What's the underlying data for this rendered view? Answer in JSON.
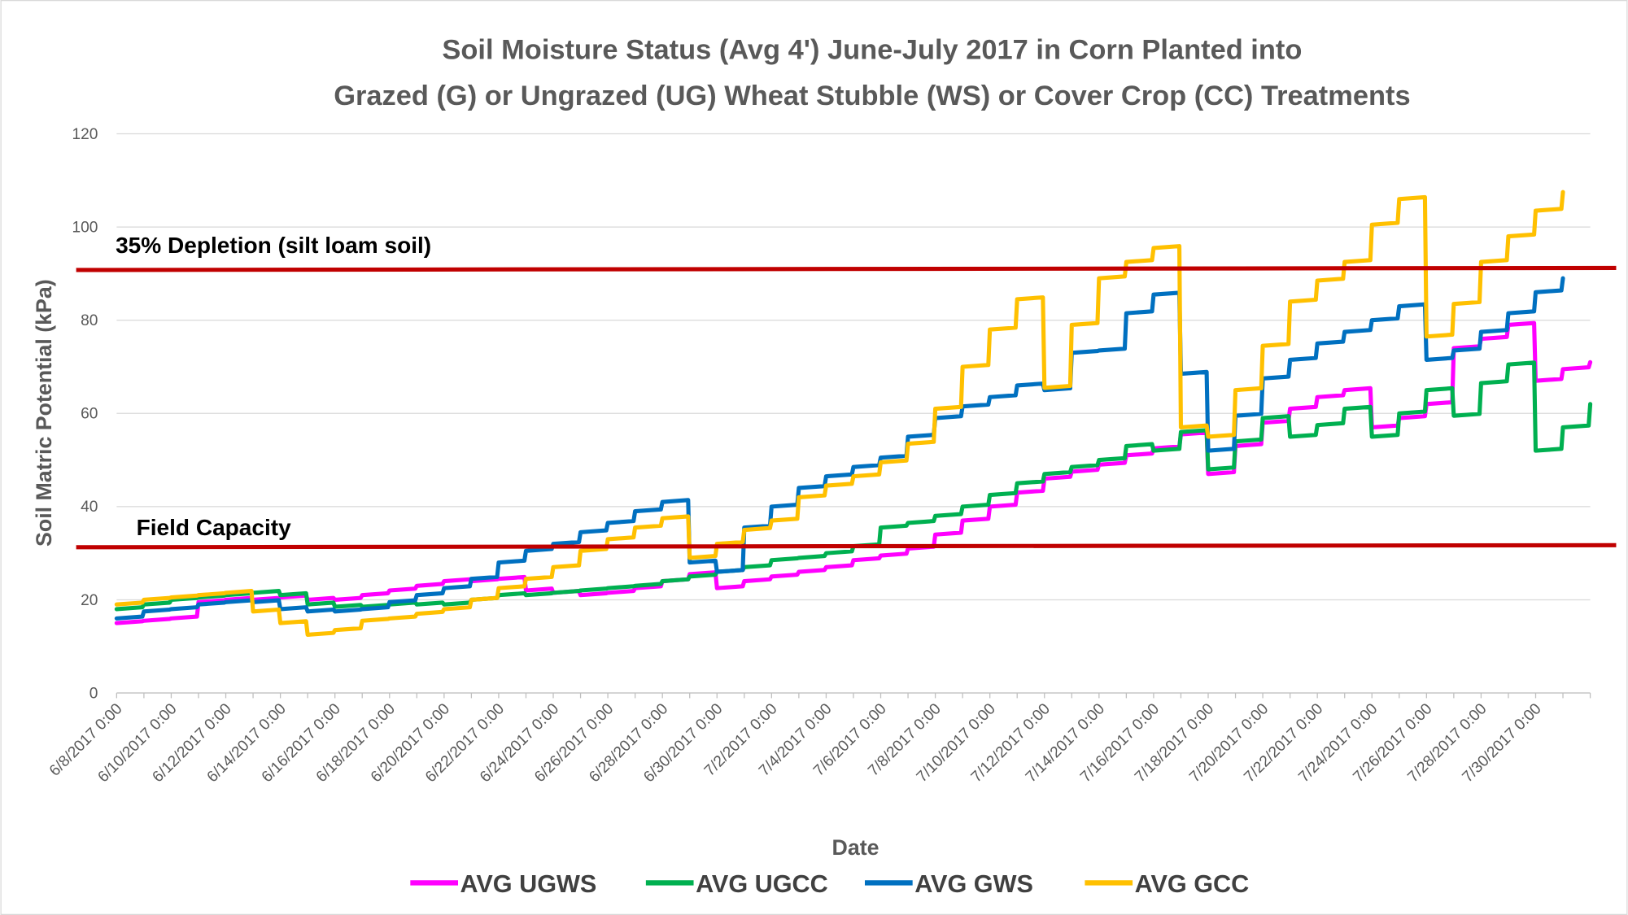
{
  "chart_data": {
    "type": "line",
    "title": [
      "Soil Moisture Status (Avg 4') June-July 2017 in Corn Planted into",
      "Grazed (G) or Ungrazed (UG) Wheat Stubble (WS) or Cover Crop (CC) Treatments"
    ],
    "xlabel": "Date",
    "ylabel": "Soil Matric Potential (kPa)",
    "ylim": [
      0,
      120
    ],
    "yticks": [
      "0",
      "20",
      "40",
      "60",
      "80",
      "100",
      "120"
    ],
    "xlim_days_from_6_8": [
      0,
      54
    ],
    "xticks": [
      "6/8/2017 0:00",
      "6/10/2017 0:00",
      "6/12/2017 0:00",
      "6/14/2017 0:00",
      "6/16/2017 0:00",
      "6/18/2017 0:00",
      "6/20/2017 0:00",
      "6/22/2017 0:00",
      "6/24/2017 0:00",
      "6/26/2017 0:00",
      "6/28/2017 0:00",
      "6/30/2017 0:00",
      "7/2/2017 0:00",
      "7/4/2017 0:00",
      "7/6/2017 0:00",
      "7/8/2017 0:00",
      "7/10/2017 0:00",
      "7/12/2017 0:00",
      "7/14/2017 0:00",
      "7/16/2017 0:00",
      "7/18/2017 0:00",
      "7/20/2017 0:00",
      "7/22/2017 0:00",
      "7/24/2017 0:00",
      "7/26/2017 0:00",
      "7/28/2017 0:00",
      "7/30/2017 0:00"
    ],
    "grid": true,
    "legend_position": "bottom",
    "reference_lines": [
      {
        "label": "35% Depletion (silt loam soil)",
        "value": 91,
        "color": "#C00000"
      },
      {
        "label": "Field Capacity",
        "value": 31.5,
        "color": "#C00000"
      }
    ],
    "series": [
      {
        "name": "AVG UGWS",
        "color": "#FF00FF",
        "values": [
          15,
          15.5,
          16,
          19.5,
          20,
          20,
          20.5,
          20,
          20,
          21,
          22,
          23,
          24,
          24,
          24.5,
          22,
          21.5,
          21,
          21.5,
          22.5,
          24,
          25.5,
          22.5,
          24,
          25,
          26,
          27,
          28.5,
          29.5,
          31,
          34,
          37,
          40,
          43,
          46,
          47.5,
          49,
          51,
          52.5,
          55.5,
          47,
          53,
          58,
          61,
          63.5,
          65,
          57,
          59,
          62,
          74,
          76,
          79,
          67,
          69.5,
          71
        ]
      },
      {
        "name": "AVG UGCC",
        "color": "#00B050",
        "values": [
          18,
          19,
          20,
          20.5,
          21,
          21.5,
          21,
          19,
          18.5,
          18.5,
          19,
          19,
          19,
          20,
          21,
          21,
          21.5,
          22,
          22.5,
          23,
          24,
          25,
          26,
          27,
          28.5,
          29,
          30,
          31.5,
          35.5,
          36.5,
          38,
          40,
          42.5,
          45,
          47,
          48.5,
          50,
          53,
          52,
          56,
          48,
          54,
          59,
          55,
          57.5,
          61,
          55,
          60,
          65,
          59.5,
          66.5,
          70.5,
          52,
          57,
          62
        ]
      },
      {
        "name": "AVG GWS",
        "color": "#0070C0",
        "values": [
          16,
          17.5,
          18,
          19,
          19.5,
          19.5,
          18,
          17.5,
          17.5,
          18,
          19.5,
          21,
          22.5,
          24.5,
          28,
          30.5,
          32,
          34.5,
          36.5,
          39,
          41,
          28,
          26,
          35.5,
          40,
          44,
          46.5,
          48.5,
          50.5,
          55,
          59,
          61.5,
          63.5,
          66,
          65,
          73,
          73.5,
          81.5,
          85.5,
          68.5,
          52,
          59.5,
          67.5,
          71.5,
          75,
          77.5,
          80,
          83,
          71.5,
          73.5,
          77.5,
          81.5,
          86,
          89
        ]
      },
      {
        "name": "AVG GCC",
        "color": "#FFC000",
        "values": [
          19,
          20,
          20.5,
          21,
          21.5,
          17.5,
          15,
          12.5,
          13.5,
          15.5,
          16,
          17,
          18,
          20,
          22.5,
          24.5,
          27,
          30.5,
          33,
          35.5,
          37.5,
          29,
          32,
          35,
          37,
          42,
          44.5,
          46.5,
          49.5,
          53.5,
          61,
          70,
          78,
          84.5,
          65.5,
          79,
          89,
          92.5,
          95.5,
          57,
          55,
          65,
          74.5,
          84,
          88.5,
          92.5,
          100.5,
          106,
          76.5,
          83.5,
          92.5,
          98,
          103.5,
          107.5
        ]
      }
    ]
  }
}
